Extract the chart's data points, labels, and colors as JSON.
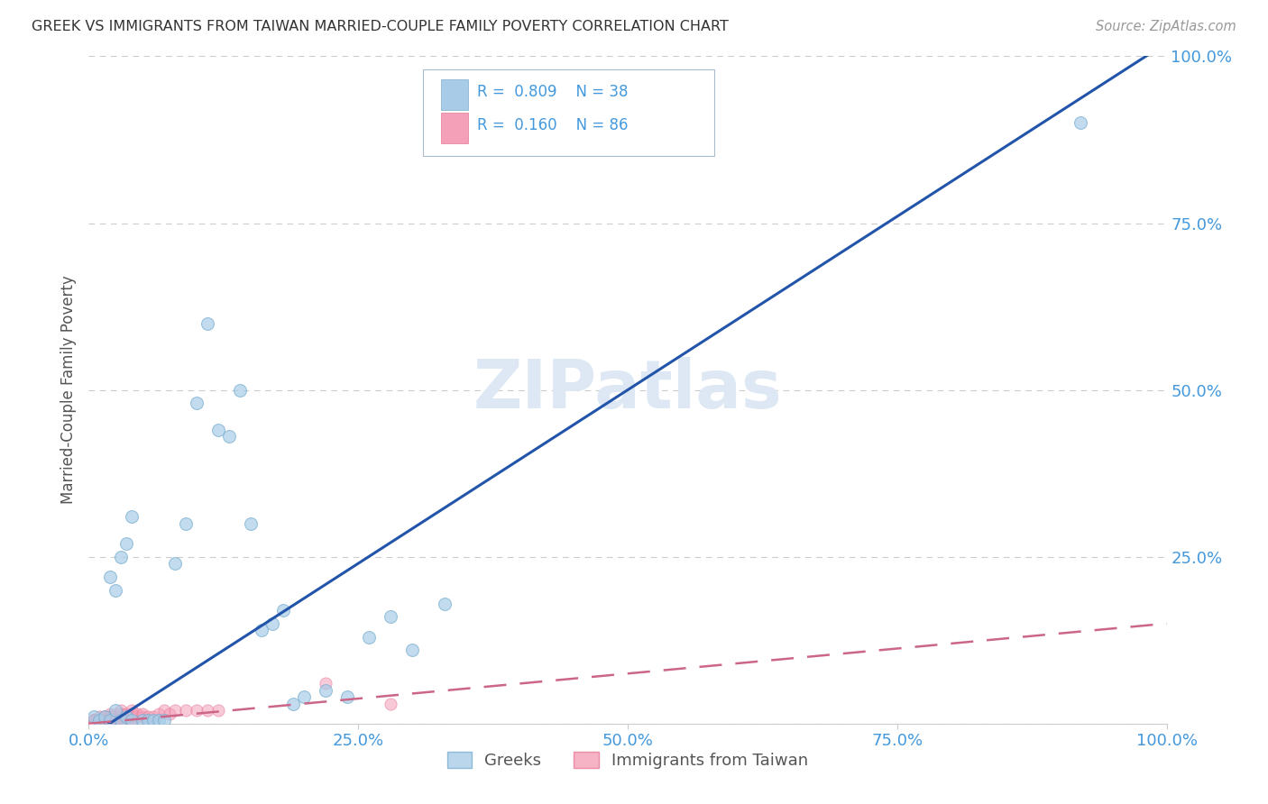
{
  "title": "GREEK VS IMMIGRANTS FROM TAIWAN MARRIED-COUPLE FAMILY POVERTY CORRELATION CHART",
  "source_text": "Source: ZipAtlas.com",
  "ylabel": "Married-Couple Family Poverty",
  "xlim": [
    0,
    1.0
  ],
  "ylim": [
    0,
    1.0
  ],
  "xticks": [
    0.0,
    0.25,
    0.5,
    0.75,
    1.0
  ],
  "yticks": [
    0.0,
    0.25,
    0.5,
    0.75,
    1.0
  ],
  "xticklabels": [
    "0.0%",
    "25.0%",
    "50.0%",
    "75.0%",
    "100.0%"
  ],
  "yticklabels": [
    "",
    "25.0%",
    "50.0%",
    "75.0%",
    "100.0%"
  ],
  "watermark": "ZIPatlas",
  "greek_color": "#a8cce8",
  "greek_edge_color": "#7aaed0",
  "taiwan_color": "#f4a0b8",
  "taiwan_edge_color": "#e87898",
  "blue_line_color": "#2255aa",
  "pink_line_color": "#cc6688",
  "background_color": "#ffffff",
  "grid_color": "#cccccc",
  "title_color": "#333333",
  "axis_label_color": "#555555",
  "tick_color": "#4499dd",
  "legend_box_color": "#aabbcc",
  "greek_x": [
    0.005,
    0.01,
    0.015,
    0.02,
    0.025,
    0.03,
    0.035,
    0.04,
    0.05,
    0.055,
    0.06,
    0.065,
    0.07,
    0.02,
    0.025,
    0.03,
    0.035,
    0.04,
    0.08,
    0.09,
    0.1,
    0.11,
    0.12,
    0.13,
    0.14,
    0.15,
    0.16,
    0.17,
    0.18,
    0.19,
    0.2,
    0.22,
    0.24,
    0.26,
    0.28,
    0.3,
    0.92,
    0.33
  ],
  "greek_y": [
    0.01,
    0.005,
    0.01,
    0.005,
    0.02,
    0.005,
    0.01,
    0.005,
    0.005,
    0.005,
    0.005,
    0.005,
    0.005,
    0.22,
    0.2,
    0.25,
    0.27,
    0.31,
    0.24,
    0.3,
    0.48,
    0.6,
    0.44,
    0.43,
    0.5,
    0.3,
    0.14,
    0.15,
    0.17,
    0.03,
    0.04,
    0.05,
    0.04,
    0.13,
    0.16,
    0.11,
    0.9,
    0.18
  ],
  "taiwan_x": [
    0.005,
    0.005,
    0.005,
    0.005,
    0.005,
    0.005,
    0.005,
    0.005,
    0.005,
    0.005,
    0.005,
    0.005,
    0.005,
    0.005,
    0.005,
    0.005,
    0.005,
    0.005,
    0.005,
    0.005,
    0.01,
    0.01,
    0.01,
    0.01,
    0.01,
    0.01,
    0.01,
    0.01,
    0.01,
    0.01,
    0.015,
    0.015,
    0.015,
    0.015,
    0.015,
    0.015,
    0.015,
    0.015,
    0.02,
    0.02,
    0.02,
    0.02,
    0.02,
    0.02,
    0.02,
    0.02,
    0.02,
    0.02,
    0.025,
    0.025,
    0.025,
    0.025,
    0.025,
    0.025,
    0.03,
    0.03,
    0.03,
    0.03,
    0.03,
    0.03,
    0.03,
    0.035,
    0.035,
    0.035,
    0.035,
    0.04,
    0.04,
    0.04,
    0.04,
    0.045,
    0.045,
    0.05,
    0.05,
    0.055,
    0.06,
    0.065,
    0.07,
    0.075,
    0.08,
    0.09,
    0.1,
    0.11,
    0.12,
    0.22,
    0.28
  ],
  "taiwan_y": [
    0.005,
    0.005,
    0.005,
    0.005,
    0.005,
    0.005,
    0.005,
    0.005,
    0.005,
    0.005,
    0.005,
    0.005,
    0.005,
    0.005,
    0.005,
    0.005,
    0.005,
    0.005,
    0.005,
    0.005,
    0.005,
    0.005,
    0.005,
    0.005,
    0.005,
    0.005,
    0.005,
    0.005,
    0.005,
    0.01,
    0.005,
    0.005,
    0.005,
    0.005,
    0.005,
    0.01,
    0.01,
    0.01,
    0.005,
    0.005,
    0.005,
    0.005,
    0.005,
    0.01,
    0.01,
    0.01,
    0.01,
    0.015,
    0.005,
    0.005,
    0.01,
    0.01,
    0.01,
    0.015,
    0.005,
    0.005,
    0.01,
    0.01,
    0.015,
    0.015,
    0.02,
    0.005,
    0.01,
    0.01,
    0.015,
    0.005,
    0.01,
    0.015,
    0.02,
    0.01,
    0.015,
    0.01,
    0.015,
    0.01,
    0.01,
    0.015,
    0.02,
    0.015,
    0.02,
    0.02,
    0.02,
    0.02,
    0.02,
    0.06,
    0.03
  ],
  "blue_line_x": [
    0.0,
    1.0
  ],
  "blue_line_y": [
    -0.02,
    1.02
  ],
  "pink_line_x": [
    0.0,
    1.0
  ],
  "pink_line_y": [
    0.0,
    0.15
  ]
}
